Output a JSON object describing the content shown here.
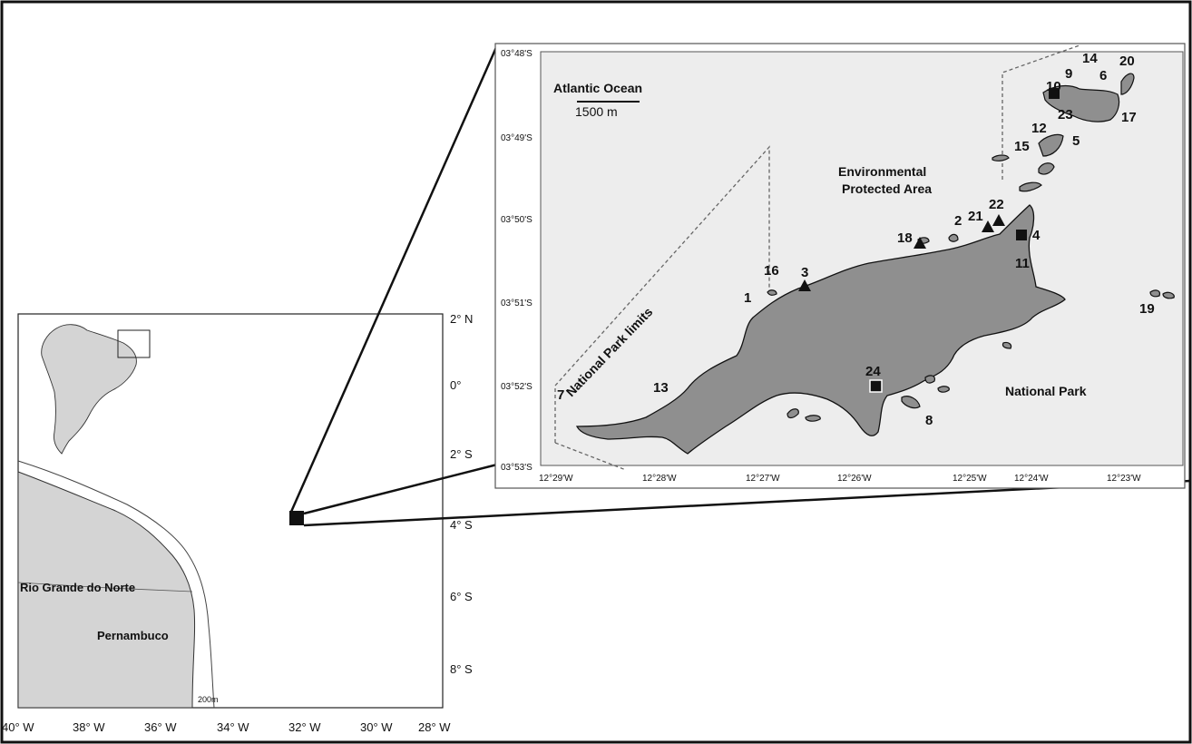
{
  "overview_map": {
    "lon_ticks": [
      "40° W",
      "38° W",
      "36° W",
      "34° W",
      "32° W",
      "30° W",
      "28° W"
    ],
    "lat_ticks": [
      "2° N",
      "0°",
      "2° S",
      "4° S",
      "6° S",
      "8° S"
    ],
    "state_labels": [
      "Rio Grande do Norte",
      "Pernambuco"
    ],
    "isobath_label": "200m"
  },
  "detail_map": {
    "lat_ticks": [
      "03°48'S",
      "03°49'S",
      "03°50'S",
      "03°51'S",
      "03°52'S",
      "03°53'S"
    ],
    "lon_ticks": [
      "12°29'W",
      "12°28'W",
      "12°27'W",
      "12°26'W",
      "12°25'W",
      "12°24'W",
      "12°23'W"
    ],
    "ocean_label": "Atlantic Ocean",
    "scale_label": "1500 m",
    "zone_labels": {
      "environmental_line1": "Environmental",
      "environmental_line2": "Protected Area",
      "national_park": "National Park",
      "park_limits": "National Park limits"
    },
    "site_numbers": [
      "1",
      "2",
      "3",
      "4",
      "5",
      "6",
      "7",
      "8",
      "9",
      "10",
      "11",
      "12",
      "13",
      "14",
      "15",
      "16",
      "17",
      "18",
      "19",
      "20",
      "21",
      "22",
      "23",
      "24"
    ],
    "marker_legend": {
      "triangle_sites": [
        "3",
        "18",
        "21",
        "22"
      ],
      "square_sites": [
        "4",
        "10",
        "24"
      ]
    }
  }
}
